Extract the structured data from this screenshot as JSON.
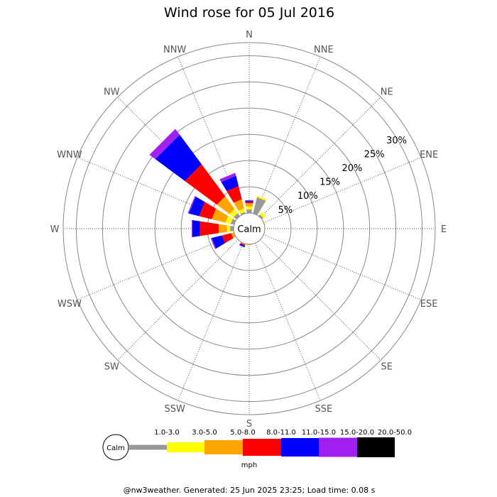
{
  "chart_data": {
    "type": "wind-rose",
    "title": "Wind rose for 05 Jul 2016",
    "directions": [
      "N",
      "NNE",
      "NE",
      "ENE",
      "E",
      "ESE",
      "SE",
      "SSE",
      "S",
      "SSW",
      "SW",
      "WSW",
      "W",
      "WNW",
      "NW",
      "NNW"
    ],
    "radial_ticks": [
      "5%",
      "10%",
      "15%",
      "20%",
      "25%",
      "30%"
    ],
    "radial_tick_values": [
      5,
      10,
      15,
      20,
      25,
      30
    ],
    "rmax": 32.5,
    "calm_label": "Calm",
    "units": "mph",
    "speed_bins": [
      "1.0-3.0",
      "3.0-5.0",
      "5.0-8.0",
      "8.0-11.0",
      "11.0-15.0",
      "15.0-20.0",
      "20.0-50.0"
    ],
    "colors": [
      "#999999",
      "#ffff00",
      "#ffa500",
      "#ff0000",
      "#0000ff",
      "#a020f0",
      "#000000"
    ],
    "series": [
      {
        "name": "1.0-3.0",
        "values": [
          0.7,
          3.2,
          0.4,
          0,
          0,
          0,
          0,
          0,
          0,
          0,
          0,
          0,
          0.7,
          0.7,
          0.7,
          0.3
        ]
      },
      {
        "name": "3.0-5.0",
        "values": [
          0.6,
          0.3,
          0.6,
          0.2,
          0,
          0,
          0,
          0,
          0,
          0,
          0,
          0,
          0.6,
          1.0,
          1.0,
          0.7
        ]
      },
      {
        "name": "5.0-8.0",
        "values": [
          0.6,
          0,
          0,
          0,
          0,
          0,
          0,
          0,
          0.2,
          0.2,
          0,
          0.6,
          1.6,
          2.7,
          3.0,
          1.8
        ]
      },
      {
        "name": "8.0-11.0",
        "values": [
          0.2,
          0,
          0,
          0,
          0,
          0,
          0,
          0,
          0,
          0.2,
          0,
          1.8,
          3.6,
          2.5,
          7.6,
          2.6
        ]
      },
      {
        "name": "11.0-15.0",
        "values": [
          0.2,
          0,
          0,
          0,
          0,
          0,
          0,
          0,
          0,
          0.3,
          0,
          2.0,
          1.5,
          2.0,
          7.0,
          2.0
        ]
      },
      {
        "name": "15.0-20.0",
        "values": [
          0.2,
          0,
          0,
          0,
          0,
          0,
          0,
          0,
          0,
          0,
          0,
          0.2,
          0.1,
          0.2,
          1.4,
          0.6
        ]
      },
      {
        "name": "20.0-50.0",
        "values": [
          0,
          0,
          0,
          0,
          0,
          0,
          0,
          0,
          0,
          0,
          0,
          0,
          0,
          0,
          0,
          0
        ]
      }
    ]
  },
  "footer": "@nw3weather. Generated: 25 Jun 2025 23:25; Load time: 0.08 s"
}
